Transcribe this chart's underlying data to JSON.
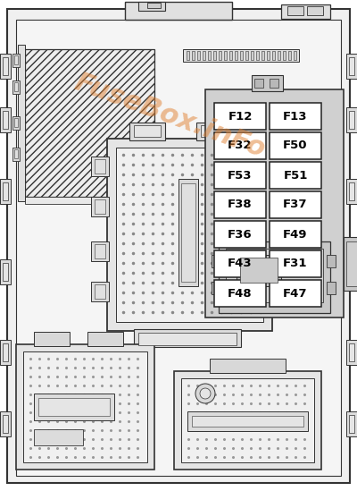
{
  "watermark": "FuseBox.inFo",
  "bg_color": "#ffffff",
  "fuse_grid": [
    [
      "F12",
      "F13"
    ],
    [
      "F32",
      "F50"
    ],
    [
      "F53",
      "F51"
    ],
    [
      "F38",
      "F37"
    ],
    [
      "F36",
      "F49"
    ],
    [
      "F43",
      "F31"
    ],
    [
      "F48",
      "F47"
    ]
  ],
  "line_color": "#333333",
  "fuse_bg": "#ffffff",
  "fuse_panel_bg": "#cccccc",
  "fuse_text_color": "#000000",
  "fuse_fontsize": 9.5,
  "hatch_fc": "#f5f5f5",
  "inner_bg": "#f8f8f8",
  "connector_bg": "#e8e8e8",
  "connector_inner": "#f2f2f2"
}
